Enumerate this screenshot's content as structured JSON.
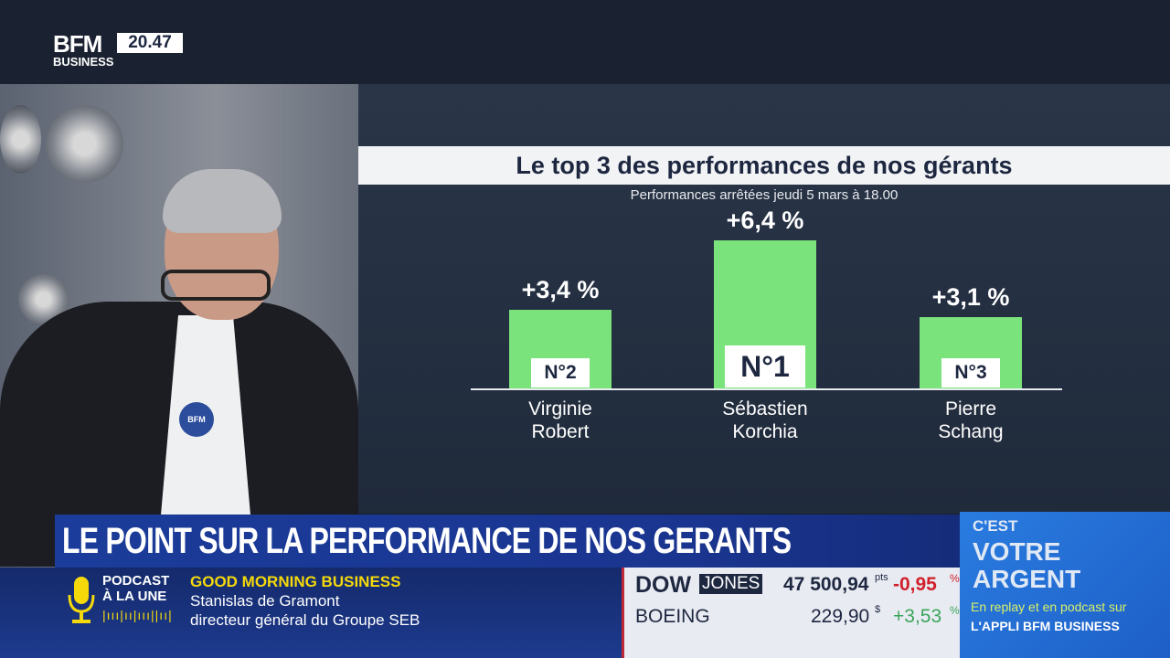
{
  "channel": {
    "logo_top": "BFM",
    "logo_bottom": "BUSINESS",
    "clock": "20.47",
    "mic_label": "BFM"
  },
  "chart_data": {
    "type": "bar",
    "title": "Le top 3 des performances de nos gérants",
    "subtitle": "Performances arrêtées jeudi 5 mars à 18.00",
    "categories": [
      "Virginie Robert",
      "Sébastien Korchia",
      "Pierre Schang"
    ],
    "name_lines": [
      [
        "Virginie",
        "Robert"
      ],
      [
        "Sébastien",
        "Korchia"
      ],
      [
        "Pierre",
        "Schang"
      ]
    ],
    "values": [
      3.4,
      6.4,
      3.1
    ],
    "value_labels": [
      "+3,4 %",
      "+6,4 %",
      "+3,1 %"
    ],
    "ranks": [
      "N°2",
      "N°1",
      "N°3"
    ],
    "unit": "%",
    "bar_color": "#7be37b"
  },
  "banner": {
    "headline": "LE POINT SUR LA PERFORMANCE DE NOS GERANTS"
  },
  "podcast": {
    "label_1": "PODCAST",
    "label_2": "À LA UNE",
    "show": "GOOD MORNING BUSINESS",
    "guest": "Stanislas de Gramont",
    "guest_title": "directeur général du Groupe SEB",
    "accent": "#f5d90a"
  },
  "ticker": {
    "rows": [
      {
        "name_a": "DOW",
        "name_b": "JONES",
        "value": "47 500,94",
        "unit": "pts",
        "change": "-0,95",
        "change_unit": "%",
        "color": "#d0202c"
      },
      {
        "name_a": "BOEING",
        "name_b": "",
        "value": "229,90",
        "unit": "$",
        "change": "+3,53",
        "change_unit": "%",
        "color": "#3aa55a"
      }
    ]
  },
  "promo": {
    "line_1": "C'EST",
    "line_2": "VOTRE",
    "line_3": "ARGENT",
    "sub_1": "En replay et en podcast sur",
    "sub_2": "L'APPLI BFM BUSINESS"
  }
}
